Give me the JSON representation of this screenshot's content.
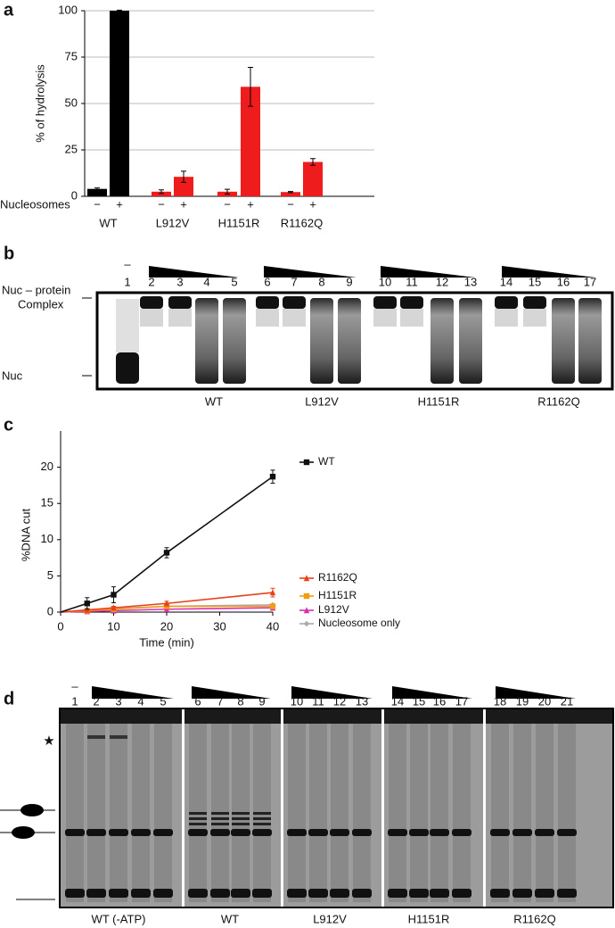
{
  "chart_data": [
    {
      "type": "bar",
      "panel": "a",
      "ylabel": "% of hydrolysis",
      "x_row_label": "Nucleosomes",
      "categories": [
        "−",
        "+",
        "−",
        "+",
        "−",
        "+",
        "−",
        "+"
      ],
      "groups": [
        "WT",
        "L912V",
        "H1151R",
        "R1162Q"
      ],
      "values": [
        4,
        100,
        2.5,
        10.5,
        2.5,
        59,
        2.3,
        18.5
      ],
      "errors": [
        0.5,
        0.3,
        1,
        3,
        1.3,
        10.5,
        0.3,
        1.8
      ],
      "colors": [
        "#000000",
        "#000000",
        "#ee1c1c",
        "#ee1c1c",
        "#ee1c1c",
        "#ee1c1c",
        "#ee1c1c",
        "#ee1c1c"
      ],
      "ylim": [
        0,
        100
      ],
      "yticks": [
        0,
        25,
        50,
        75,
        100
      ],
      "grid": true
    },
    {
      "type": "line",
      "panel": "c",
      "xlabel": "Time (min)",
      "ylabel": "%DNA cut",
      "x": [
        0,
        5,
        10,
        20,
        40
      ],
      "series": [
        {
          "name": "WT",
          "color": "#111111",
          "marker": "square",
          "values": [
            0,
            1.2,
            2.4,
            8.2,
            18.7
          ],
          "errors": [
            0,
            0.8,
            1.1,
            0.7,
            0.9
          ]
        },
        {
          "name": "R1162Q",
          "color": "#e8401c",
          "marker": "triangle",
          "values": [
            0,
            0.3,
            0.6,
            1.2,
            2.7
          ],
          "errors": [
            0,
            0.1,
            0.2,
            0.3,
            0.6
          ]
        },
        {
          "name": "H1151R",
          "color": "#f39c12",
          "marker": "square",
          "values": [
            0,
            0.2,
            0.4,
            0.8,
            0.8
          ],
          "errors": [
            0,
            0.1,
            0.1,
            0.2,
            0.2
          ]
        },
        {
          "name": "L912V",
          "color": "#d62fb0",
          "marker": "triangle",
          "values": [
            0,
            0.1,
            0.2,
            0.4,
            0.6
          ],
          "errors": [
            0,
            0.05,
            0.1,
            0.1,
            0.1
          ]
        },
        {
          "name": "Nucleosome only",
          "color": "#aaaaaa",
          "marker": "diamond",
          "values": [
            0,
            0.3,
            0.5,
            0.8,
            1.0
          ],
          "errors": [
            0,
            0.1,
            0.1,
            0.1,
            0.1
          ]
        }
      ],
      "xlim": [
        0,
        40
      ],
      "xticks": [
        0,
        10,
        20,
        30,
        40
      ],
      "ylim": [
        0,
        25
      ],
      "yticks": [
        0,
        5,
        10,
        15,
        20
      ]
    }
  ],
  "gels": [
    {
      "panel": "b",
      "dash": "–",
      "lanes": [
        "1",
        "2",
        "3",
        "4",
        "5",
        "6",
        "7",
        "8",
        "9",
        "10",
        "11",
        "12",
        "13",
        "14",
        "15",
        "16",
        "17"
      ],
      "groups": [
        "WT",
        "L912V",
        "H1151R",
        "R1162Q"
      ],
      "left_labels": [
        "Nuc – protein",
        "Complex",
        "Nuc"
      ]
    },
    {
      "panel": "d",
      "dash": "–",
      "star": "★",
      "lanes": [
        "1",
        "2",
        "3",
        "4",
        "5",
        "6",
        "7",
        "8",
        "9",
        "10",
        "11",
        "12",
        "13",
        "14",
        "15",
        "16",
        "17",
        "18",
        "19",
        "20",
        "21"
      ],
      "groups": [
        "WT (-ATP)",
        "WT",
        "L912V",
        "H1151R",
        "R1162Q"
      ]
    }
  ]
}
